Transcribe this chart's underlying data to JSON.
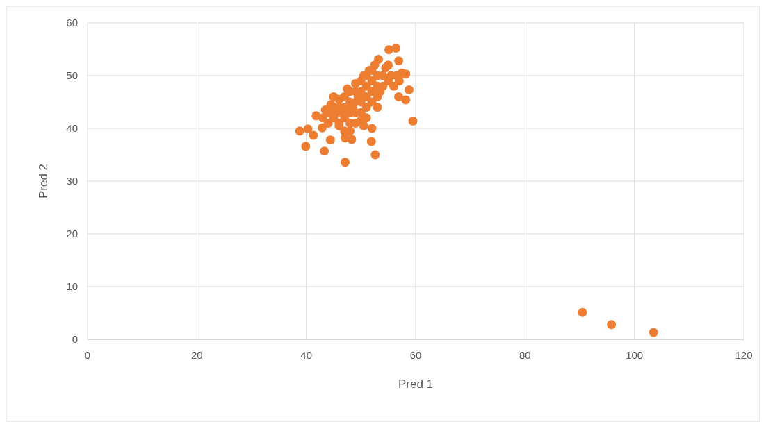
{
  "chart_data": {
    "type": "scatter",
    "xlabel": "Pred 1",
    "ylabel": "Pred 2",
    "xlim": [
      0,
      120
    ],
    "xticks": [
      0,
      20,
      40,
      60,
      80,
      100,
      120
    ],
    "ylim": [
      0,
      60
    ],
    "yticks": [
      0,
      10,
      20,
      30,
      40,
      50,
      60
    ],
    "grid": true,
    "marker": "circle",
    "series": [
      {
        "color": "#ed7d31",
        "x": [
          38.8,
          40.3,
          39.9,
          43.3,
          47.1,
          52.6,
          51.9,
          48.3,
          47.1,
          44.4,
          59.5,
          58.8,
          58.2,
          56.9,
          55.1,
          56.4,
          56.9,
          58.2,
          53.2,
          41.8,
          41.3,
          42.9,
          43,
          43.5,
          44,
          44,
          44.5,
          45,
          45,
          45,
          45.5,
          46,
          46,
          46,
          46.5,
          47,
          47,
          47,
          47.5,
          48,
          48,
          48,
          48,
          48.5,
          49,
          49,
          49,
          49,
          49,
          49.5,
          50,
          50,
          50,
          50,
          50,
          50.5,
          51,
          51,
          51,
          51,
          51,
          51.5,
          52,
          52,
          52,
          52,
          52.5,
          53,
          53,
          53,
          53,
          53.5,
          54,
          54,
          54.5,
          55,
          55,
          55.5,
          56,
          56.5,
          57,
          57.5,
          52,
          48,
          50.5,
          47,
          46,
          90.5,
          95.8,
          103.5
        ],
        "values": [
          39.5,
          39.9,
          36.6,
          35.7,
          33.6,
          35,
          37.5,
          37.9,
          38.2,
          37.8,
          41.4,
          47.3,
          45.4,
          46,
          54.9,
          55.2,
          52.8,
          50.3,
          53.1,
          42.4,
          38.7,
          40.1,
          42,
          43.5,
          41,
          43,
          44.5,
          42,
          44,
          46,
          43,
          41,
          44,
          45.5,
          43,
          42,
          44,
          46,
          47.5,
          41,
          43,
          45,
          47,
          44,
          41,
          43,
          45,
          47,
          48.5,
          46,
          41.5,
          43,
          45,
          47,
          49,
          50,
          42,
          44,
          46,
          48,
          50,
          51,
          45,
          47,
          49,
          51,
          52,
          44,
          46,
          48,
          50,
          47,
          48,
          50,
          51.5,
          49,
          52,
          50,
          48,
          50,
          49,
          50.5,
          40,
          39.5,
          40.5,
          39.5,
          40.5,
          5.1,
          2.8,
          1.3
        ]
      }
    ]
  }
}
